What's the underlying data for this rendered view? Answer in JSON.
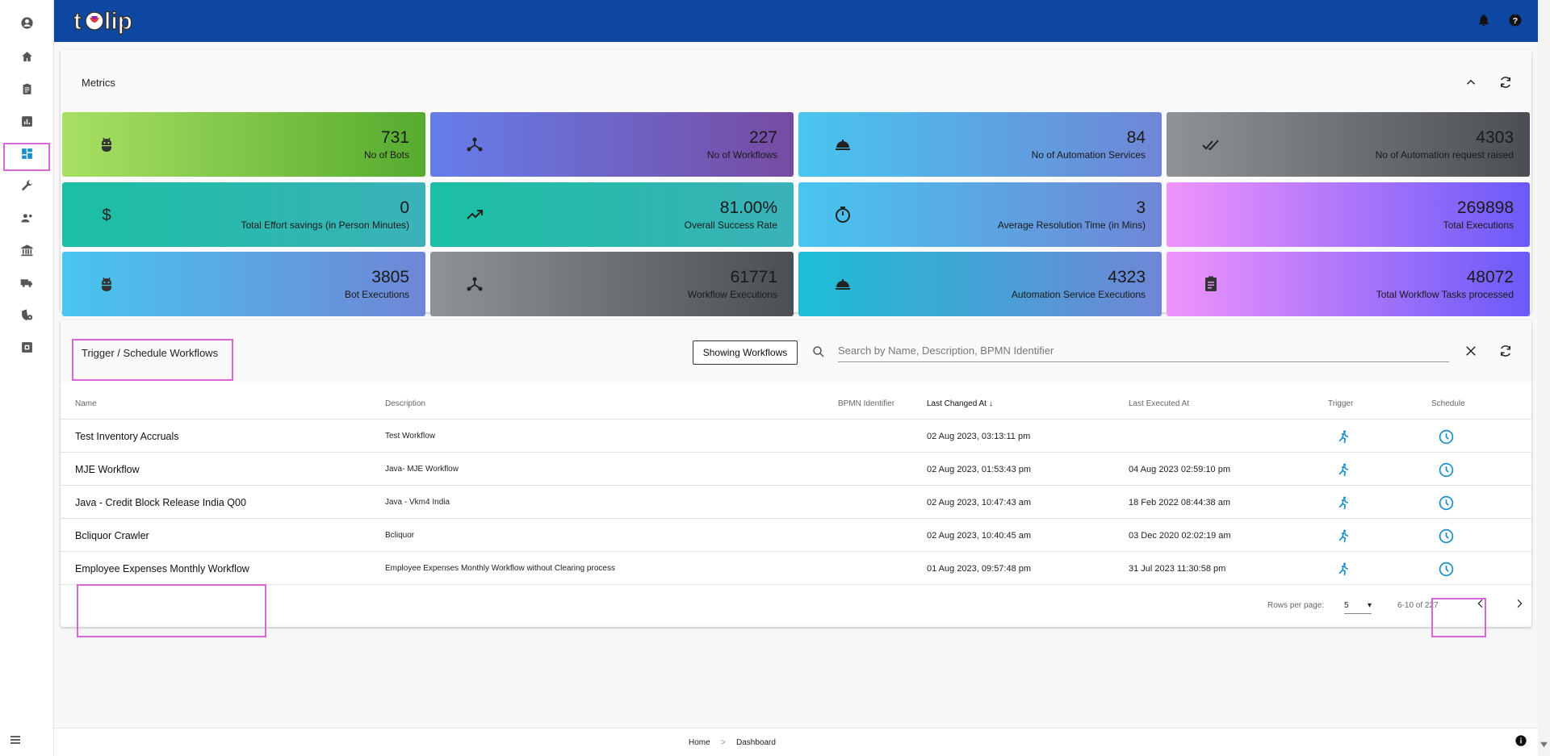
{
  "app": {
    "logo_text": "tulip"
  },
  "colors": {
    "topbar": "#0d47a1",
    "accent": "#1a8fc9",
    "highlight": "#d966d6"
  },
  "sidebar": {
    "items": [
      {
        "icon": "account-circle-icon"
      },
      {
        "icon": "home-icon"
      },
      {
        "icon": "clipboard-icon"
      },
      {
        "icon": "analytics-icon"
      },
      {
        "icon": "dashboard-icon",
        "active": true
      },
      {
        "icon": "wrench-icon"
      },
      {
        "icon": "people-settings-icon"
      },
      {
        "icon": "bank-icon"
      },
      {
        "icon": "truck-icon"
      },
      {
        "icon": "security-icon"
      },
      {
        "icon": "plugin-box-icon"
      }
    ]
  },
  "topbar": {
    "icons": [
      "bell-icon",
      "help-icon"
    ]
  },
  "metrics": {
    "title": "Metrics",
    "tiles": [
      {
        "value": "731",
        "label": "No of Bots",
        "icon": "robot-icon"
      },
      {
        "value": "227",
        "label": "No of Workflows",
        "icon": "workflow-icon"
      },
      {
        "value": "84",
        "label": "No of Automation Services",
        "icon": "service-bell-icon"
      },
      {
        "value": "4303",
        "label": "No of Automation request raised",
        "icon": "double-check-icon"
      },
      {
        "value": "0",
        "label": "Total Effort savings (in Person Minutes)",
        "icon": "dollar-icon"
      },
      {
        "value": "81.00%",
        "label": "Overall Success Rate",
        "icon": "trending-up-icon"
      },
      {
        "value": "3",
        "label": "Average Resolution Time (in Mins)",
        "icon": "timer-icon"
      },
      {
        "value": "269898",
        "label": "Total Executions",
        "icon": ""
      },
      {
        "value": "3805",
        "label": "Bot Executions",
        "icon": "robot-icon"
      },
      {
        "value": "61771",
        "label": "Workflow Executions",
        "icon": "workflow-icon"
      },
      {
        "value": "4323",
        "label": "Automation Service Executions",
        "icon": "service-bell-icon"
      },
      {
        "value": "48072",
        "label": "Total Workflow Tasks processed",
        "icon": "clipboard-icon"
      }
    ]
  },
  "workflows": {
    "title": "Trigger / Schedule Workflows",
    "showing_label": "Showing Workflows",
    "search_placeholder": "Search by Name, Description, BPMN Identifier",
    "columns": {
      "name": "Name",
      "description": "Description",
      "bpmn": "BPMN Identifier",
      "last_changed": "Last Changed At",
      "last_executed": "Last Executed At",
      "trigger": "Trigger",
      "schedule": "Schedule"
    },
    "rows": [
      {
        "name": "Test Inventory Accruals",
        "description": "Test Workflow",
        "bpmn": "",
        "last_changed": "02 Aug 2023, 03:13:11 pm",
        "last_executed": ""
      },
      {
        "name": "MJE Workflow",
        "description": "Java- MJE Workflow",
        "bpmn": "",
        "last_changed": "02 Aug 2023, 01:53:43 pm",
        "last_executed": "04 Aug 2023 02:59:10 pm"
      },
      {
        "name": "Java - Credit Block Release India Q00",
        "description": "Java - Vkm4 India",
        "bpmn": "",
        "last_changed": "02 Aug 2023, 10:47:43 am",
        "last_executed": "18 Feb 2022 08:44:38 am"
      },
      {
        "name": "Bcliquor Crawler",
        "description": "Bcliquor",
        "bpmn": "",
        "last_changed": "02 Aug 2023, 10:40:45 am",
        "last_executed": "03 Dec 2020 02:02:19 am"
      },
      {
        "name": "Employee Expenses Monthly Workflow",
        "description": "Employee Expenses Monthly Workflow without Clearing process",
        "bpmn": "",
        "last_changed": "01 Aug 2023, 09:57:48 pm",
        "last_executed": "31 Jul 2023 11:30:58 pm"
      }
    ],
    "pagination": {
      "rows_per_page_label": "Rows per page:",
      "rows_per_page": "5",
      "range": "6-10 of 227"
    }
  },
  "breadcrumb": {
    "home": "Home",
    "separator": ">",
    "current": "Dashboard"
  }
}
